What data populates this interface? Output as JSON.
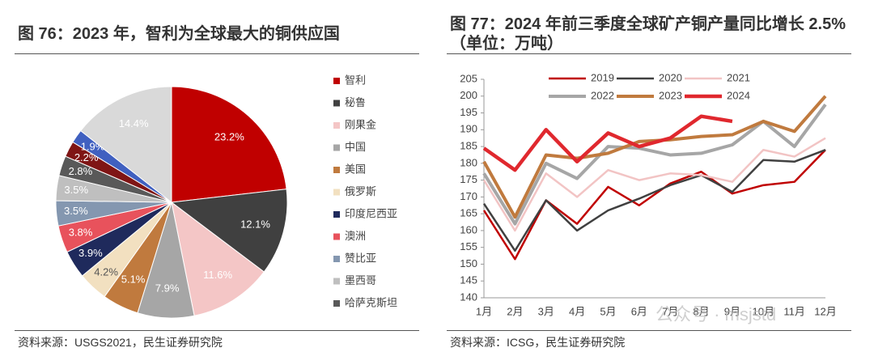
{
  "chart_data": [
    {
      "type": "pie",
      "title": "图 76：2023 年，智利为全球最大的铜供应国",
      "categories": [
        "智利",
        "秘鲁",
        "刚果金",
        "中国",
        "美国",
        "俄罗斯",
        "印度尼西亚",
        "澳洲",
        "赞比亚",
        "墨西哥",
        "哈萨克斯坦",
        null,
        null,
        null
      ],
      "values": [
        23.2,
        12.1,
        11.6,
        7.9,
        5.1,
        4.2,
        3.9,
        3.8,
        3.5,
        3.5,
        2.8,
        2.2,
        1.9,
        14.4
      ],
      "value_labels": [
        "23.2%",
        "12.1%",
        "11.6%",
        "7.9%",
        "5.1%",
        "4.2%",
        "3.9%",
        "3.8%",
        "3.5%",
        "3.5%",
        "2.8%",
        "2.2%",
        "1.9%",
        "14.4%"
      ],
      "colors": [
        "#c00000",
        "#404040",
        "#f4c6c6",
        "#a6a6a6",
        "#c07a3e",
        "#f2e0c0",
        "#1f2a5c",
        "#e8525c",
        "#8497b0",
        "#bfbfbf",
        "#595959",
        "#7f1515",
        "#4060c0",
        "#d9d9d9"
      ],
      "legend": "right",
      "source": "资料来源：USGS2021，民生证券研究院"
    },
    {
      "type": "line",
      "title": "图 77：2024 年前三季度全球矿产铜产量同比增长 2.5%（单位：万吨）",
      "categories": [
        "1月",
        "2月",
        "3月",
        "4月",
        "5月",
        "6月",
        "7月",
        "8月",
        "9月",
        "10月",
        "11月",
        "12月"
      ],
      "ylim": [
        140,
        205
      ],
      "yticks": [
        140,
        145,
        150,
        155,
        160,
        165,
        170,
        175,
        180,
        185,
        190,
        195,
        200,
        205
      ],
      "grid": false,
      "legend": "top",
      "series": [
        {
          "name": "2019",
          "color": "#c00000",
          "line_width": 2.5,
          "values": [
            166,
            151.5,
            169,
            162,
            173,
            167.5,
            174,
            177.5,
            171,
            173.5,
            174.5,
            184
          ]
        },
        {
          "name": "2020",
          "color": "#404040",
          "line_width": 2.5,
          "values": [
            168,
            154,
            169,
            160,
            166,
            169.5,
            173.5,
            176.5,
            171.5,
            181,
            180.5,
            184
          ]
        },
        {
          "name": "2021",
          "color": "#f2c4c4",
          "line_width": 2.5,
          "values": [
            175,
            160,
            177,
            170,
            178,
            175,
            177,
            176.5,
            174.5,
            184,
            182,
            187.5
          ]
        },
        {
          "name": "2022",
          "color": "#a6a6a6",
          "line_width": 4,
          "values": [
            177,
            162,
            180,
            175.5,
            185,
            184.5,
            182.5,
            183,
            185.5,
            192.5,
            185,
            197.5
          ]
        },
        {
          "name": "2023",
          "color": "#c07a3e",
          "line_width": 4,
          "values": [
            180.5,
            164,
            182.5,
            181.5,
            183,
            186.5,
            187,
            188,
            188.5,
            192.5,
            189.5,
            200
          ]
        },
        {
          "name": "2024",
          "color": "#e0282e",
          "line_width": 4.5,
          "values": [
            184.5,
            178,
            190,
            180.5,
            189,
            185,
            187.5,
            194,
            192.5,
            null,
            null,
            null
          ]
        }
      ],
      "watermark": "公众号 · msjstd",
      "source": "资料来源：ICSG，民生证券研究院"
    }
  ]
}
